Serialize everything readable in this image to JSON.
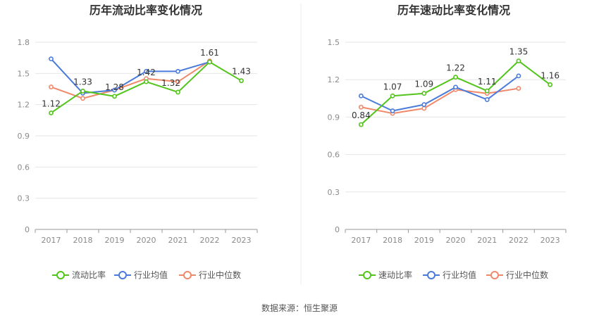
{
  "source": "数据来源：恒生聚源",
  "colors": {
    "primary": "#52c41a",
    "industry_avg": "#4a7bdc",
    "industry_median": "#f0896a",
    "grid": "#e6e6e6",
    "axis": "#999999"
  },
  "chart_data": [
    {
      "type": "line",
      "title": "历年流动比率变化情况",
      "categories": [
        "2017",
        "2018",
        "2019",
        "2020",
        "2021",
        "2022",
        "2023"
      ],
      "ylim": [
        0,
        1.8
      ],
      "yticks": [
        "0",
        "0.3",
        "0.6",
        "0.9",
        "1.2",
        "1.5",
        "1.8"
      ],
      "grid": true,
      "legend": "bottom",
      "series": [
        {
          "name": "流动比率",
          "color": "#52c41a",
          "values": [
            1.12,
            1.33,
            1.28,
            1.42,
            1.32,
            1.61,
            1.43
          ],
          "labels": [
            "1.12",
            "1.33",
            "1.28",
            "1.42",
            "1.32",
            "1.61",
            "1.43"
          ]
        },
        {
          "name": "行业均值",
          "color": "#4a7bdc",
          "values": [
            1.64,
            1.31,
            1.34,
            1.52,
            1.52,
            1.61,
            null
          ]
        },
        {
          "name": "行业中位数",
          "color": "#f0896a",
          "values": [
            1.37,
            1.26,
            1.34,
            1.45,
            1.42,
            1.62,
            null
          ]
        }
      ]
    },
    {
      "type": "line",
      "title": "历年速动比率变化情况",
      "categories": [
        "2017",
        "2018",
        "2019",
        "2020",
        "2021",
        "2022",
        "2023"
      ],
      "ylim": [
        0,
        1.5
      ],
      "yticks": [
        "0",
        "0.3",
        "0.6",
        "0.9",
        "1.2",
        "1.5"
      ],
      "grid": true,
      "legend": "bottom",
      "series": [
        {
          "name": "速动比率",
          "color": "#52c41a",
          "values": [
            0.84,
            1.07,
            1.09,
            1.22,
            1.11,
            1.35,
            1.16
          ],
          "labels": [
            "0.84",
            "1.07",
            "1.09",
            "1.22",
            "1.11",
            "1.35",
            "1.16"
          ]
        },
        {
          "name": "行业均值",
          "color": "#4a7bdc",
          "values": [
            1.07,
            0.95,
            1.0,
            1.14,
            1.04,
            1.23,
            null
          ]
        },
        {
          "name": "行业中位数",
          "color": "#f0896a",
          "values": [
            0.98,
            0.93,
            0.97,
            1.12,
            1.09,
            1.13,
            null
          ]
        }
      ]
    }
  ]
}
